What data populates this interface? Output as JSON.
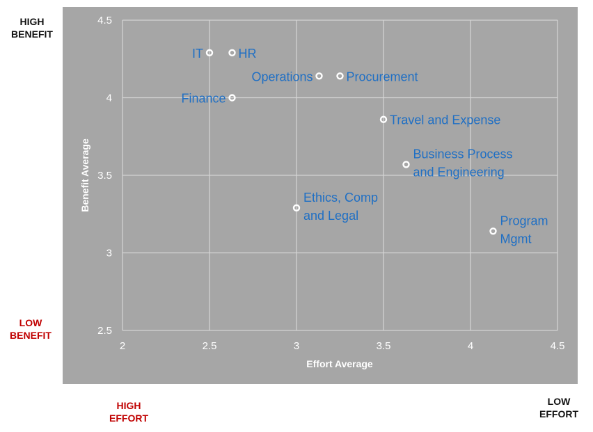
{
  "corner_labels": {
    "high_benefit": "HIGH\nBENEFIT",
    "low_benefit": "LOW\nBENEFIT",
    "high_effort": "HIGH\nEFFORT",
    "low_effort": "LOW\nEFFORT"
  },
  "colors": {
    "plot_background": "#a6a6a6",
    "gridline": "#d4d4d4",
    "label_blue": "#1f6fc4",
    "marker": "#ffffff",
    "red_label": "#c00000"
  },
  "chart_data": {
    "type": "scatter",
    "title": "",
    "xlabel": "Effort Average",
    "ylabel": "Benefit Average",
    "xlim": [
      2,
      4.5
    ],
    "ylim": [
      2.5,
      4.5
    ],
    "xticks": [
      "2",
      "2.5",
      "3",
      "3.5",
      "4",
      "4.5"
    ],
    "yticks": [
      "2.5",
      "3",
      "3.5",
      "4",
      "4.5"
    ],
    "grid": true,
    "points": [
      {
        "label": [
          "IT"
        ],
        "x": 2.5,
        "y": 4.29,
        "label_side": "left"
      },
      {
        "label": [
          "HR"
        ],
        "x": 2.63,
        "y": 4.29,
        "label_side": "right"
      },
      {
        "label": [
          "Operations"
        ],
        "x": 3.13,
        "y": 4.14,
        "label_side": "left"
      },
      {
        "label": [
          "Procurement"
        ],
        "x": 3.25,
        "y": 4.14,
        "label_side": "right"
      },
      {
        "label": [
          "Finance"
        ],
        "x": 2.63,
        "y": 4.0,
        "label_side": "left"
      },
      {
        "label": [
          "Travel and Expense"
        ],
        "x": 3.5,
        "y": 3.86,
        "label_side": "right"
      },
      {
        "label": [
          "Business Process",
          "and Engineering"
        ],
        "x": 3.63,
        "y": 3.57,
        "label_side": "right"
      },
      {
        "label": [
          "Ethics, Comp",
          "and Legal"
        ],
        "x": 3.0,
        "y": 3.29,
        "label_side": "right"
      },
      {
        "label": [
          "Program",
          "Mgmt"
        ],
        "x": 4.13,
        "y": 3.14,
        "label_side": "right"
      }
    ]
  }
}
